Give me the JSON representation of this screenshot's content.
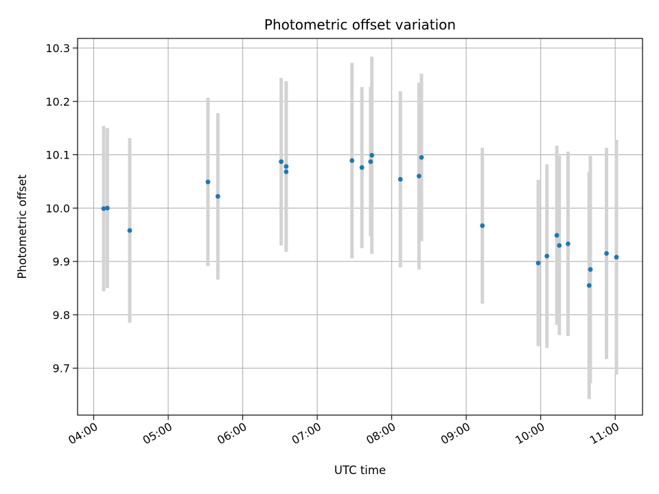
{
  "chart_data": {
    "type": "scatter",
    "title": "Photometric offset variation",
    "xlabel": "UTC time",
    "ylabel": "Photometric offset",
    "x_unit": "UTC time (HH:MM)",
    "xlim": [
      "03:47",
      "11:22"
    ],
    "ylim": [
      9.612,
      10.318
    ],
    "x_ticks": [
      "04:00",
      "05:00",
      "06:00",
      "07:00",
      "08:00",
      "09:00",
      "10:00",
      "11:00"
    ],
    "y_ticks": [
      9.7,
      9.8,
      9.9,
      10.0,
      10.1,
      10.2,
      10.3
    ],
    "grid": true,
    "legend": "none",
    "point_color": "#1f77b4",
    "errorbar_color": "#d3d3d3",
    "points": [
      {
        "x": "04:08",
        "y": 9.999,
        "err": 0.155
      },
      {
        "x": "04:11",
        "y": 10.0,
        "err": 0.15
      },
      {
        "x": "04:29",
        "y": 9.958,
        "err": 0.173
      },
      {
        "x": "05:32",
        "y": 10.049,
        "err": 0.158
      },
      {
        "x": "05:40",
        "y": 10.022,
        "err": 0.156
      },
      {
        "x": "06:31",
        "y": 10.087,
        "err": 0.157
      },
      {
        "x": "06:35",
        "y": 10.078,
        "err": 0.16
      },
      {
        "x": "06:35",
        "y": 10.068,
        "err": 0.15
      },
      {
        "x": "07:28",
        "y": 10.089,
        "err": 0.183
      },
      {
        "x": "07:36",
        "y": 10.076,
        "err": 0.151
      },
      {
        "x": "07:43",
        "y": 10.087,
        "err": 0.14
      },
      {
        "x": "07:44",
        "y": 10.099,
        "err": 0.185
      },
      {
        "x": "08:07",
        "y": 10.054,
        "err": 0.165
      },
      {
        "x": "08:22",
        "y": 10.06,
        "err": 0.175
      },
      {
        "x": "08:24",
        "y": 10.095,
        "err": 0.157
      },
      {
        "x": "09:13",
        "y": 9.967,
        "err": 0.146
      },
      {
        "x": "09:58",
        "y": 9.897,
        "err": 0.156
      },
      {
        "x": "10:05",
        "y": 9.91,
        "err": 0.172
      },
      {
        "x": "10:13",
        "y": 9.949,
        "err": 0.168
      },
      {
        "x": "10:15",
        "y": 9.93,
        "err": 0.168
      },
      {
        "x": "10:22",
        "y": 9.933,
        "err": 0.173
      },
      {
        "x": "10:39",
        "y": 9.855,
        "err": 0.213
      },
      {
        "x": "10:40",
        "y": 9.885,
        "err": 0.213
      },
      {
        "x": "10:53",
        "y": 9.915,
        "err": 0.198
      },
      {
        "x": "11:01",
        "y": 9.908,
        "err": 0.22
      }
    ]
  }
}
